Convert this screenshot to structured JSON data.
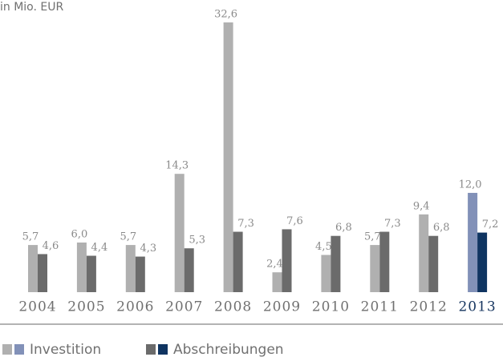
{
  "chart_data": {
    "type": "bar",
    "title": "in Mio. EUR",
    "categories": [
      "2004",
      "2005",
      "2006",
      "2007",
      "2008",
      "2009",
      "2010",
      "2011",
      "2012",
      "2013"
    ],
    "category_colors": [
      "#707070",
      "#707070",
      "#707070",
      "#707070",
      "#707070",
      "#707070",
      "#707070",
      "#707070",
      "#707070",
      "#16355f"
    ],
    "series": [
      {
        "name": "Investition",
        "colors": [
          "#b0b0b0",
          "#b0b0b0",
          "#b0b0b0",
          "#b0b0b0",
          "#b0b0b0",
          "#b0b0b0",
          "#b0b0b0",
          "#b0b0b0",
          "#b0b0b0",
          "#8291b8"
        ],
        "values": [
          5.7,
          6.0,
          5.7,
          14.3,
          32.6,
          2.4,
          4.5,
          5.7,
          9.4,
          12.0
        ],
        "value_labels": [
          "5,7",
          "6,0",
          "5,7",
          "14,3",
          "32,6",
          "2,4",
          "4,5",
          "5,7",
          "9,4",
          "12,0"
        ]
      },
      {
        "name": "Abschreibungen",
        "colors": [
          "#6b6b6b",
          "#6b6b6b",
          "#6b6b6b",
          "#6b6b6b",
          "#6b6b6b",
          "#6b6b6b",
          "#6b6b6b",
          "#6b6b6b",
          "#6b6b6b",
          "#0f3461"
        ],
        "values": [
          4.6,
          4.4,
          4.3,
          5.3,
          7.3,
          7.6,
          6.8,
          7.3,
          6.8,
          7.2
        ],
        "value_labels": [
          "4,6",
          "4,4",
          "4,3",
          "5,3",
          "7,3",
          "7,6",
          "6,8",
          "7,3",
          "6,8",
          "7,2"
        ]
      }
    ]
  }
}
